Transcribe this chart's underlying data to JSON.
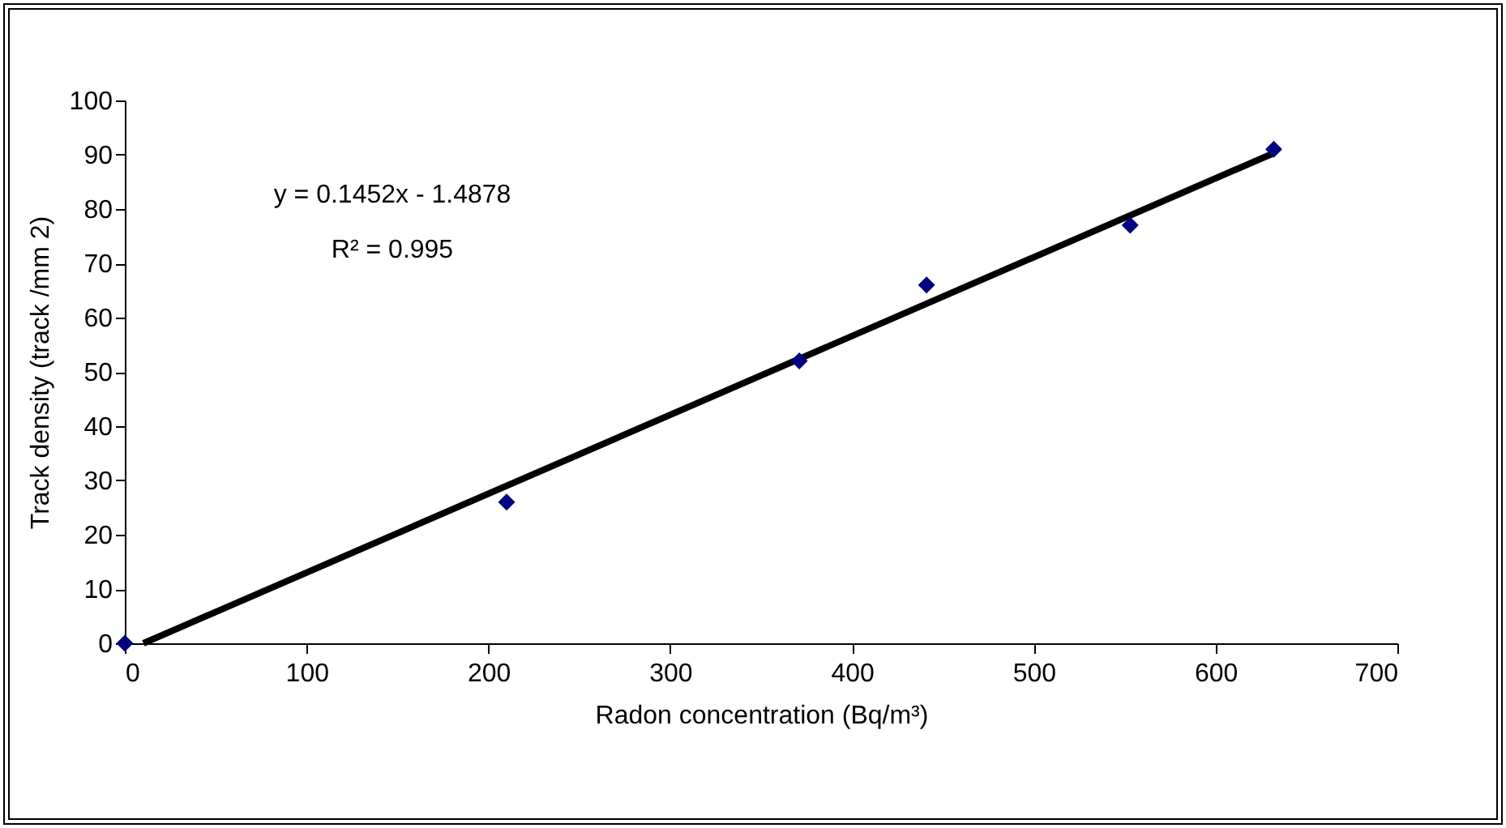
{
  "chart_data": {
    "type": "scatter",
    "xlabel": "Radon concentration (Bq/m³)",
    "ylabel": "Track density (track /mm 2)",
    "series": [
      {
        "color": "#000080",
        "x": [
          0,
          210,
          371,
          441,
          553,
          632
        ],
        "values": [
          0,
          26,
          52,
          66,
          77,
          91
        ]
      },
      {
        "type": "line",
        "marker": "none",
        "color": "#000000",
        "x": [
          10.25,
          632
        ],
        "values": [
          0,
          90.3
        ]
      }
    ],
    "annotations": [
      "y = 0.1452x - 1.4878",
      "R² = 0.995"
    ],
    "xlim": [
      0,
      700
    ],
    "xticks": [
      0,
      100,
      200,
      300,
      400,
      500,
      600,
      700
    ],
    "ylim": [
      0,
      100
    ],
    "yticks": [
      0,
      10,
      20,
      30,
      40,
      50,
      60,
      70,
      80,
      90,
      100
    ],
    "marker": "diamond",
    "grid": false,
    "legend": false
  }
}
